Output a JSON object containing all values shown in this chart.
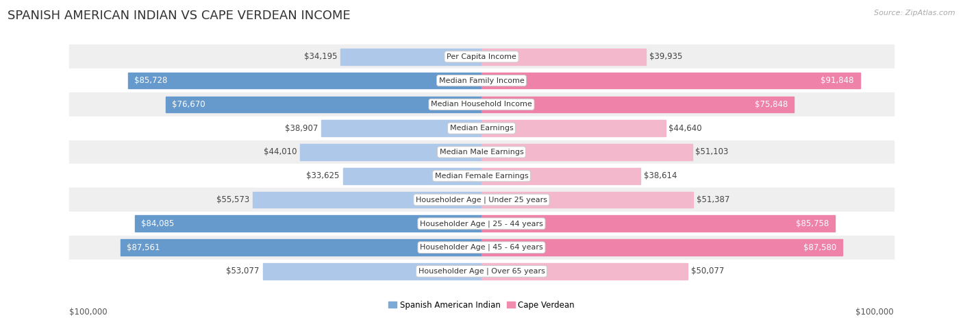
{
  "title": "SPANISH AMERICAN INDIAN VS CAPE VERDEAN INCOME",
  "source": "Source: ZipAtlas.com",
  "categories": [
    "Per Capita Income",
    "Median Family Income",
    "Median Household Income",
    "Median Earnings",
    "Median Male Earnings",
    "Median Female Earnings",
    "Householder Age | Under 25 years",
    "Householder Age | 25 - 44 years",
    "Householder Age | 45 - 64 years",
    "Householder Age | Over 65 years"
  ],
  "left_values": [
    34195,
    85728,
    76670,
    38907,
    44010,
    33625,
    55573,
    84085,
    87561,
    53077
  ],
  "right_values": [
    39935,
    91848,
    75848,
    44640,
    51103,
    38614,
    51387,
    85758,
    87580,
    50077
  ],
  "left_labels": [
    "$34,195",
    "$85,728",
    "$76,670",
    "$38,907",
    "$44,010",
    "$33,625",
    "$55,573",
    "$84,085",
    "$87,561",
    "$53,077"
  ],
  "right_labels": [
    "$39,935",
    "$91,848",
    "$75,848",
    "$44,640",
    "$51,103",
    "$38,614",
    "$51,387",
    "$85,758",
    "$87,580",
    "$50,077"
  ],
  "max_value": 100000,
  "large_threshold": 60000,
  "left_color_light": "#adc8e8",
  "left_color_dark": "#6699cc",
  "right_color_light": "#f4b8cc",
  "right_color_dark": "#ee82a8",
  "left_legend_color": "#7aaad5",
  "right_legend_color": "#f08cad",
  "left_label": "Spanish American Indian",
  "right_label": "Cape Verdean",
  "bg_odd": "#efefef",
  "bg_even": "#ffffff",
  "title_fontsize": 13,
  "bar_label_fontsize": 8.5,
  "cat_label_fontsize": 8.0,
  "axis_label_fontsize": 8.5
}
